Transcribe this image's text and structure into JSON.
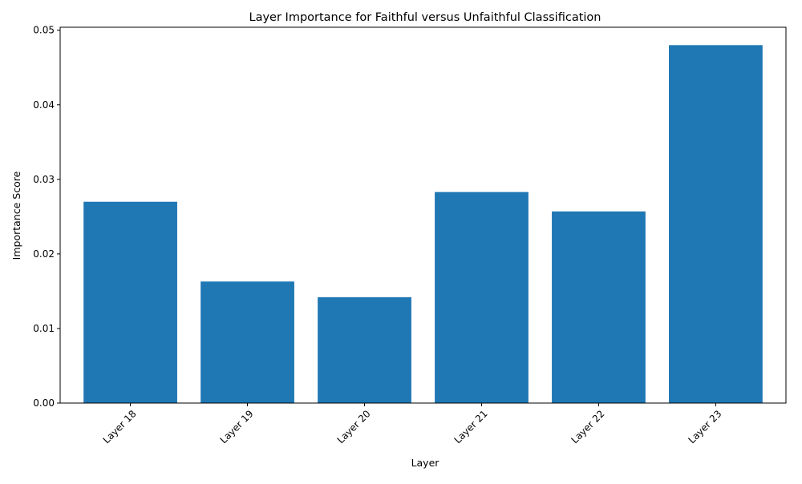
{
  "chart_data": {
    "type": "bar",
    "title": "Layer Importance for Faithful versus Unfaithful Classification",
    "xlabel": "Layer",
    "ylabel": "Importance Score",
    "categories": [
      "Layer 18",
      "Layer 19",
      "Layer 20",
      "Layer 21",
      "Layer 22",
      "Layer 23"
    ],
    "values": [
      0.027,
      0.0163,
      0.0142,
      0.0283,
      0.0257,
      0.048
    ],
    "ylim": [
      0,
      0.0504
    ],
    "yticks": [
      0.0,
      0.01,
      0.02,
      0.03,
      0.04,
      0.05
    ],
    "ytick_labels": [
      "0.00",
      "0.01",
      "0.02",
      "0.03",
      "0.04",
      "0.05"
    ],
    "bar_color": "#1f77b4",
    "grid": false,
    "legend": "none"
  }
}
